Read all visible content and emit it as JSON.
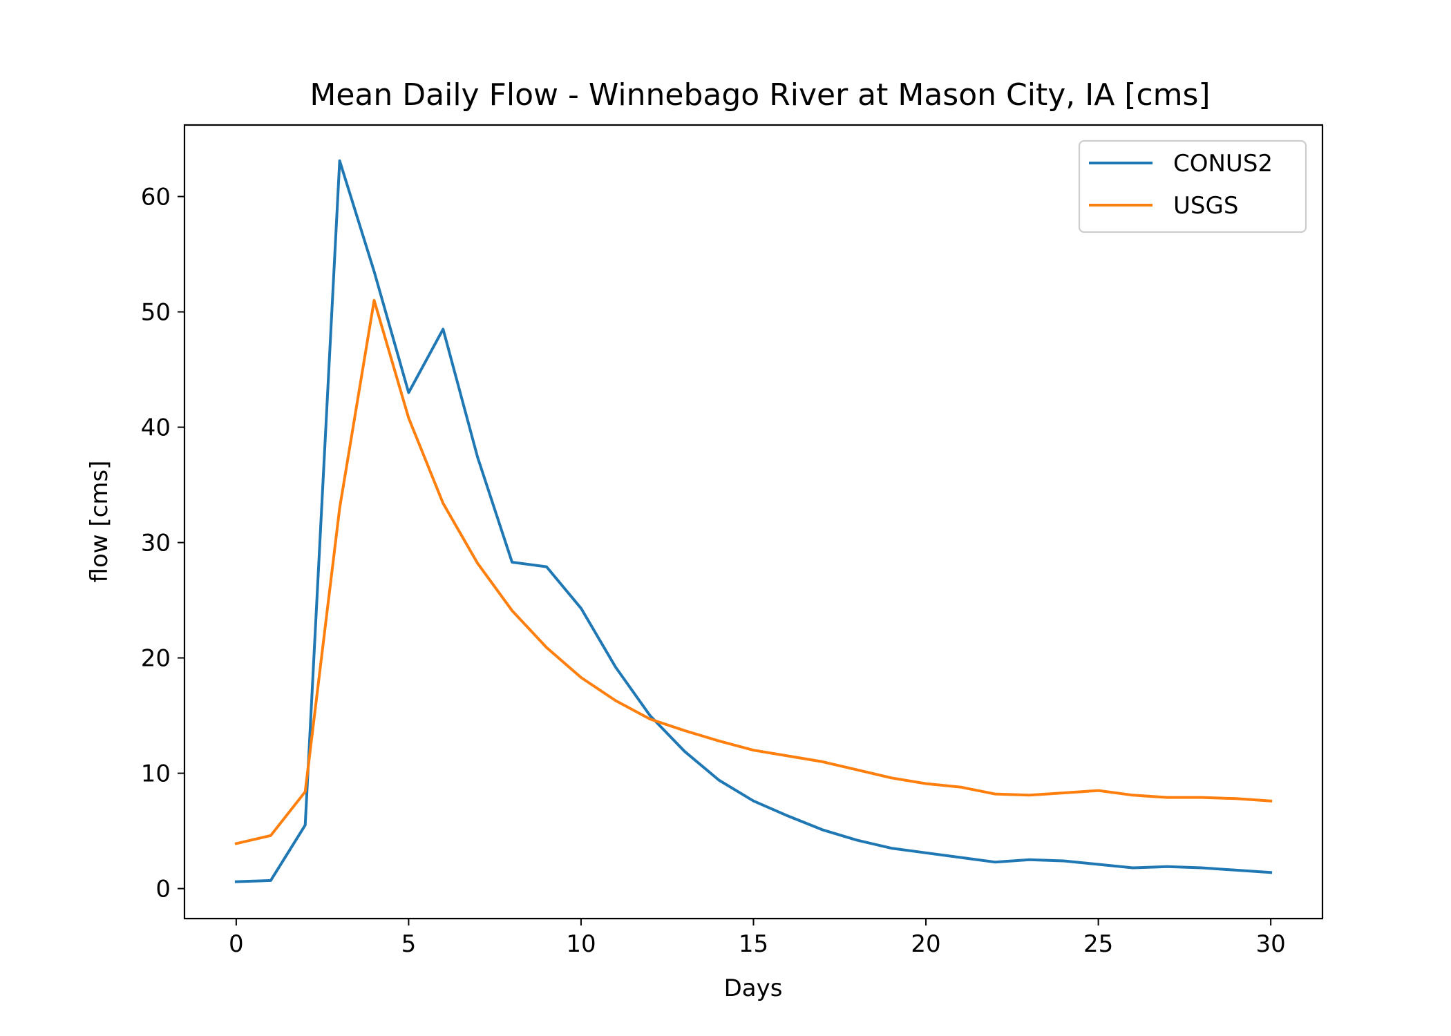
{
  "chart_data": {
    "type": "line",
    "title": "Mean Daily Flow - Winnebago River at Mason City, IA [cms]",
    "xlabel": "Days",
    "ylabel": "flow [cms]",
    "xlim": [
      -1.5,
      31.5
    ],
    "ylim": [
      -2.6,
      66.2
    ],
    "xticks": [
      0,
      5,
      10,
      15,
      20,
      25,
      30
    ],
    "yticks": [
      0,
      10,
      20,
      30,
      40,
      50,
      60
    ],
    "grid": false,
    "legend_position": "top-right",
    "x": [
      0,
      1,
      2,
      3,
      4,
      5,
      6,
      7,
      8,
      9,
      10,
      11,
      12,
      13,
      14,
      15,
      16,
      17,
      18,
      19,
      20,
      21,
      22,
      23,
      24,
      25,
      26,
      27,
      28,
      29,
      30
    ],
    "series": [
      {
        "name": "CONUS2",
        "color": "#1f77b4",
        "values": [
          0.6,
          0.7,
          5.5,
          63.1,
          53.5,
          43.0,
          48.5,
          37.4,
          28.3,
          27.9,
          24.3,
          19.2,
          15.0,
          11.9,
          9.4,
          7.6,
          6.3,
          5.1,
          4.2,
          3.5,
          3.1,
          2.7,
          2.3,
          2.5,
          2.4,
          2.1,
          1.8,
          1.9,
          1.8,
          1.6,
          1.4
        ]
      },
      {
        "name": "USGS",
        "color": "#ff7f0e",
        "values": [
          3.9,
          4.6,
          8.4,
          33.0,
          51.0,
          40.8,
          33.4,
          28.2,
          24.1,
          20.9,
          18.3,
          16.3,
          14.7,
          13.7,
          12.8,
          12.0,
          11.5,
          11.0,
          10.3,
          9.6,
          9.1,
          8.8,
          8.2,
          8.1,
          8.3,
          8.5,
          8.1,
          7.9,
          7.9,
          7.8,
          7.6
        ]
      }
    ]
  }
}
